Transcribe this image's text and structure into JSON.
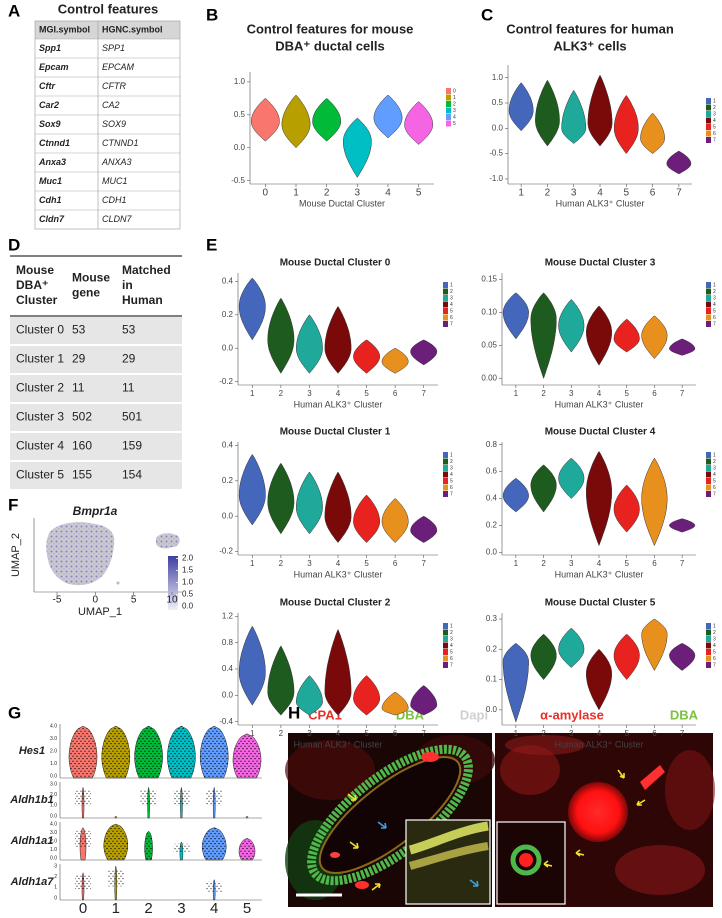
{
  "panel_labels": [
    "A",
    "B",
    "C",
    "D",
    "E",
    "F",
    "G",
    "H"
  ],
  "table_a": {
    "title": "Control features",
    "header": [
      "MGI.symbol",
      "HGNC.symbol"
    ],
    "rows": [
      [
        "Spp1",
        "SPP1"
      ],
      [
        "Epcam",
        "EPCAM"
      ],
      [
        "Cftr",
        "CFTR"
      ],
      [
        "Car2",
        "CA2"
      ],
      [
        "Sox9",
        "SOX9"
      ],
      [
        "Ctnnd1",
        "CTNND1"
      ],
      [
        "Anxa3",
        "ANXA3"
      ],
      [
        "Muc1",
        "MUC1"
      ],
      [
        "Cdh1",
        "CDH1"
      ],
      [
        "Cldn7",
        "CLDN7"
      ]
    ]
  },
  "table_d": {
    "header": [
      "Mouse DBA⁺ Cluster",
      "Mouse gene",
      "Matched in Human"
    ],
    "rows": [
      [
        "Cluster 0",
        53,
        53
      ],
      [
        "Cluster 1",
        29,
        29
      ],
      [
        "Cluster 2",
        11,
        11
      ],
      [
        "Cluster 3",
        502,
        501
      ],
      [
        "Cluster 4",
        160,
        159
      ],
      [
        "Cluster 5",
        155,
        154
      ]
    ]
  },
  "chart_data": [
    {
      "type": "violin",
      "title": [
        "Control features for mouse",
        "DBA⁺ ductal cells"
      ],
      "xlabel": "Mouse Ductal Cluster",
      "categories": [
        "0",
        "1",
        "2",
        "3",
        "4",
        "5"
      ],
      "colors": [
        "#F8766D",
        "#B79F00",
        "#00BA38",
        "#00BFC4",
        "#619CFF",
        "#F564E3"
      ],
      "ylim": [
        -0.55,
        1.15
      ],
      "yticks": [
        -0.5,
        {
          "value": 0,
          "label": "0.0"
        },
        0.5,
        {
          "value": 1,
          "label": "1.0"
        }
      ],
      "low": [
        0.1,
        0.0,
        0.1,
        -0.45,
        0.15,
        0.05
      ],
      "center": [
        0.4,
        0.35,
        0.4,
        0.1,
        0.45,
        0.35
      ],
      "high": [
        0.75,
        0.8,
        0.75,
        0.45,
        0.8,
        0.7
      ],
      "legend": true
    },
    {
      "type": "violin",
      "title": [
        "Control features for human",
        "ALK3⁺ cells"
      ],
      "xlabel": "Human ALK3⁺ Cluster",
      "categories": [
        "1",
        "2",
        "3",
        "4",
        "5",
        "6",
        "7"
      ],
      "colors": [
        "#4466BB",
        "#1E5B1E",
        "#1FA99B",
        "#7A0A0A",
        "#E8221E",
        "#E8901E",
        "#6B1E7A"
      ],
      "ylim": [
        -1.1,
        1.25
      ],
      "yticks": [
        {
          "value": -1,
          "label": "-1.0"
        },
        -0.5,
        {
          "value": 0,
          "label": "0.0"
        },
        0.5,
        {
          "value": 1,
          "label": "1.0"
        }
      ],
      "low": [
        -0.05,
        -0.35,
        -0.3,
        -0.35,
        -0.5,
        -0.5,
        -0.9
      ],
      "center": [
        0.35,
        0.15,
        0.0,
        0.1,
        0.0,
        -0.2,
        -0.7
      ],
      "high": [
        0.9,
        0.95,
        0.75,
        1.05,
        0.65,
        0.3,
        -0.45
      ],
      "legend": true
    },
    {
      "type": "violin",
      "title": "Mouse Ductal Cluster 0",
      "xlabel": "Human ALK3⁺ Cluster",
      "categories": [
        "1",
        "2",
        "3",
        "4",
        "5",
        "6",
        "7"
      ],
      "colors": [
        "#4466BB",
        "#1E5B1E",
        "#1FA99B",
        "#7A0A0A",
        "#E8221E",
        "#E8901E",
        "#6B1E7A"
      ],
      "ylim": [
        -0.22,
        0.45
      ],
      "yticks": [
        -0.2,
        {
          "value": 0,
          "label": "0.0"
        },
        0.2,
        0.4
      ],
      "low": [
        0.05,
        -0.15,
        -0.15,
        -0.15,
        -0.15,
        -0.15,
        -0.1
      ],
      "center": [
        0.25,
        0.05,
        0.0,
        0.0,
        -0.05,
        -0.08,
        -0.02
      ],
      "high": [
        0.42,
        0.3,
        0.2,
        0.25,
        0.05,
        0.0,
        0.05
      ],
      "legend": true
    },
    {
      "type": "violin",
      "title": "Mouse Ductal Cluster 3",
      "xlabel": "Human ALK3⁺ Cluster",
      "categories": [
        "1",
        "2",
        "3",
        "4",
        "5",
        "6",
        "7"
      ],
      "colors": [
        "#4466BB",
        "#1E5B1E",
        "#1FA99B",
        "#7A0A0A",
        "#E8221E",
        "#E8901E",
        "#6B1E7A"
      ],
      "ylim": [
        -0.01,
        0.16
      ],
      "yticks": [
        {
          "value": 0,
          "label": "0.00"
        },
        0.05,
        {
          "value": 0.1,
          "label": "0.10"
        },
        0.15
      ],
      "low": [
        0.06,
        0.0,
        0.04,
        0.02,
        0.04,
        0.03,
        0.035
      ],
      "center": [
        0.1,
        0.09,
        0.08,
        0.07,
        0.06,
        0.065,
        0.045
      ],
      "high": [
        0.13,
        0.13,
        0.12,
        0.11,
        0.09,
        0.095,
        0.06
      ],
      "legend": true
    },
    {
      "type": "violin",
      "title": "Mouse Ductal Cluster 1",
      "xlabel": "Human ALK3⁺ Cluster",
      "categories": [
        "1",
        "2",
        "3",
        "4",
        "5",
        "6",
        "7"
      ],
      "colors": [
        "#4466BB",
        "#1E5B1E",
        "#1FA99B",
        "#7A0A0A",
        "#E8221E",
        "#E8901E",
        "#6B1E7A"
      ],
      "ylim": [
        -0.22,
        0.42
      ],
      "yticks": [
        -0.2,
        {
          "value": 0,
          "label": "0.0"
        },
        0.2,
        0.4
      ],
      "low": [
        -0.05,
        -0.1,
        -0.1,
        -0.15,
        -0.15,
        -0.15,
        -0.15
      ],
      "center": [
        0.12,
        0.08,
        0.05,
        0.0,
        -0.03,
        -0.03,
        -0.08
      ],
      "high": [
        0.35,
        0.3,
        0.25,
        0.25,
        0.12,
        0.1,
        0.0
      ],
      "legend": true
    },
    {
      "type": "violin",
      "title": "Mouse Ductal Cluster 4",
      "xlabel": "Human ALK3⁺ Cluster",
      "categories": [
        "1",
        "2",
        "3",
        "4",
        "5",
        "6",
        "7"
      ],
      "colors": [
        "#4466BB",
        "#1E5B1E",
        "#1FA99B",
        "#7A0A0A",
        "#E8221E",
        "#E8901E",
        "#6B1E7A"
      ],
      "ylim": [
        -0.02,
        0.82
      ],
      "yticks": [
        {
          "value": 0,
          "label": "0.0"
        },
        0.2,
        0.4,
        0.6,
        0.8
      ],
      "low": [
        0.3,
        0.3,
        0.4,
        0.05,
        0.15,
        0.05,
        0.15
      ],
      "center": [
        0.42,
        0.5,
        0.55,
        0.45,
        0.32,
        0.4,
        0.2
      ],
      "high": [
        0.55,
        0.65,
        0.7,
        0.75,
        0.5,
        0.7,
        0.25
      ],
      "legend": true
    },
    {
      "type": "violin",
      "title": "Mouse Ductal Cluster 2",
      "xlabel": "Human ALK3⁺ Cluster",
      "categories": [
        "1",
        "2",
        "3",
        "4",
        "5",
        "6",
        "7"
      ],
      "colors": [
        "#4466BB",
        "#1E5B1E",
        "#1FA99B",
        "#7A0A0A",
        "#E8221E",
        "#E8901E",
        "#6B1E7A"
      ],
      "ylim": [
        -0.45,
        1.25
      ],
      "yticks": [
        -0.4,
        {
          "value": 0,
          "label": "0.0"
        },
        0.4,
        0.8,
        1.2
      ],
      "low": [
        -0.15,
        -0.3,
        -0.3,
        -0.3,
        -0.3,
        -0.3,
        -0.3
      ],
      "center": [
        0.35,
        0.05,
        -0.1,
        0.05,
        -0.05,
        -0.2,
        -0.15
      ],
      "high": [
        1.05,
        0.75,
        0.3,
        1.0,
        0.3,
        0.05,
        0.15
      ],
      "legend": true
    },
    {
      "type": "violin",
      "title": "Mouse Ductal Cluster 5",
      "xlabel": "Human ALK3⁺ Cluster",
      "categories": [
        "1",
        "2",
        "3",
        "4",
        "5",
        "6",
        "7"
      ],
      "colors": [
        "#4466BB",
        "#1E5B1E",
        "#1FA99B",
        "#7A0A0A",
        "#E8221E",
        "#E8901E",
        "#6B1E7A"
      ],
      "ylim": [
        -0.05,
        0.32
      ],
      "yticks": [
        {
          "value": 0,
          "label": "0.0"
        },
        0.1,
        0.2,
        0.3
      ],
      "low": [
        -0.04,
        0.1,
        0.14,
        0.0,
        0.1,
        0.13,
        0.13
      ],
      "center": [
        0.16,
        0.18,
        0.2,
        0.12,
        0.18,
        0.25,
        0.18
      ],
      "high": [
        0.22,
        0.25,
        0.27,
        0.2,
        0.25,
        0.3,
        0.22
      ],
      "legend": true
    }
  ],
  "umap_f": {
    "title": "Bmpr1a",
    "xlabel": "UMAP_1",
    "ylabel": "UMAP_2",
    "xlim": [
      -8,
      13
    ],
    "xticks": [
      -5,
      0,
      5,
      10
    ],
    "colorbar_lim": [
      -0.15,
      2.1
    ],
    "colorbar_ticks": [
      {
        "value": 2,
        "label": "2.0"
      },
      1.5,
      {
        "value": 1,
        "label": "1.0"
      },
      0.5,
      {
        "value": 0,
        "label": "0.0"
      }
    ]
  },
  "violin_g": {
    "categories": [
      "0",
      "1",
      "2",
      "3",
      "4",
      "5"
    ],
    "genes": [
      {
        "name": "Hes1",
        "ticks": [
          "4.0",
          "3.0",
          "2.0",
          "1.0",
          "0.0"
        ]
      },
      {
        "name": "Aldh1b1",
        "ticks": [
          "3.0",
          "2.0",
          "1.0",
          "0.0"
        ]
      },
      {
        "name": "Aldh1a1",
        "ticks": [
          "4.0",
          "3.0",
          "2.0",
          "1.0",
          "0.0"
        ]
      },
      {
        "name": "Aldh1a7",
        "ticks": [
          "3",
          "2",
          "1",
          "0"
        ]
      }
    ]
  },
  "image_h": {
    "left_labels": [
      "CPA1",
      "DBA",
      "Dapi"
    ],
    "right_labels": [
      "α-amylase",
      "DBA"
    ]
  }
}
